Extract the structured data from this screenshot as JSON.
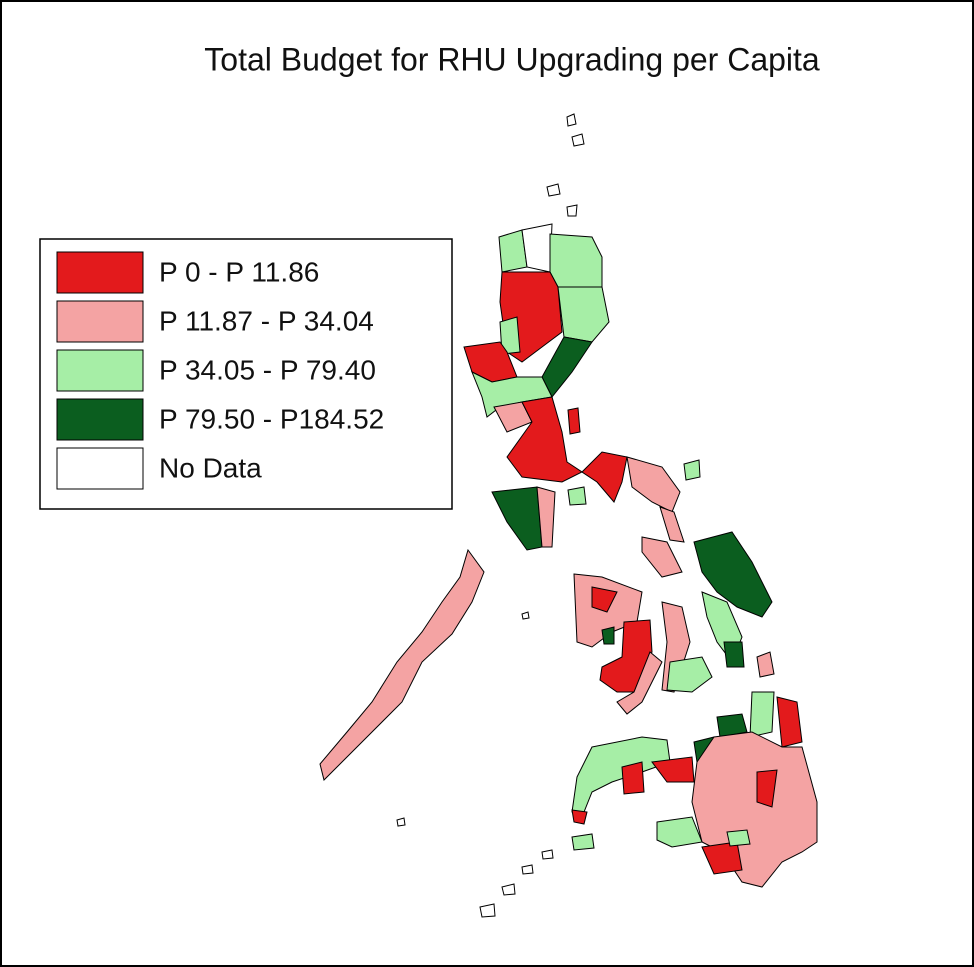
{
  "title": "Total Budget for RHU Upgrading per Capita",
  "legend": [
    {
      "label": "P 0 - P 11.86",
      "color": "#e31a1c"
    },
    {
      "label": "P 11.87 - P 34.04",
      "color": "#f4a3a3"
    },
    {
      "label": "P 34.05 - P 79.40",
      "color": "#a6eea6"
    },
    {
      "label": "P 79.50 - P184.52",
      "color": "#0b5e1f"
    },
    {
      "label": "No Data",
      "color": "#ffffff"
    }
  ]
}
